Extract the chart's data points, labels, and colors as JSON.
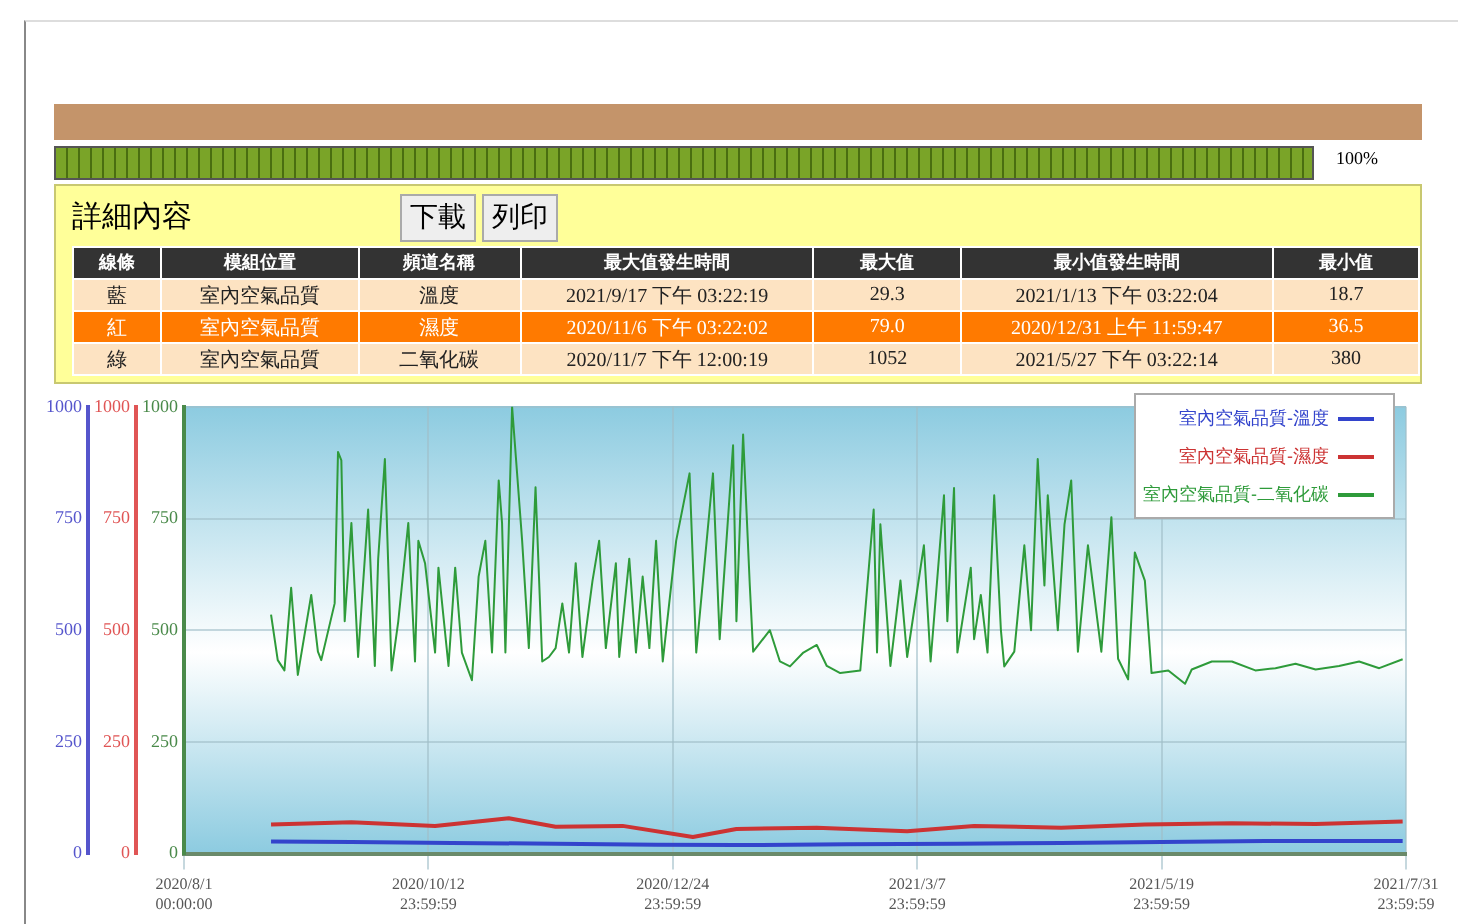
{
  "chart_data": [
    {
      "type": "other",
      "title": "詳細內容",
      "annotations": [
        "100%",
        "下載",
        "列印",
        "線條",
        "模組位置",
        "頻道名稱",
        "最大值發生時間",
        "最大值",
        "最小值發生時間",
        "最小值",
        "藍",
        "室內空氣品質",
        "溫度",
        "2021/9/17 下午 03:22:19",
        "29.3",
        "2021/1/13 下午 03:22:04",
        "18.7",
        "紅",
        "室內空氣品質",
        "濕度",
        "2020/11/6 下午 03:22:02",
        "79.0",
        "2020/12/31 上午 11:59:47",
        "36.5",
        "綠",
        "室內空氣品質",
        "二氧化碳",
        "2020/11/7 下午 12:00:19",
        "1052",
        "2021/5/27 下午 03:22:14",
        "380"
      ]
    },
    {
      "type": "line",
      "legend": "top right",
      "grid": true,
      "marker": "none",
      "line_style": "solid",
      "xlim": [
        "2020-08-01T00:00",
        "2021-07-31T23:59"
      ],
      "xticks": [
        {
          "value": "2020-08-01T00:00",
          "label": "2020/8/1 00:00:00"
        },
        {
          "value": "2020-10-12T23:59",
          "label": "2020/10/12 23:59:59"
        },
        {
          "value": "2020-12-24T23:59",
          "label": "2020/12/24 23:59:59"
        },
        {
          "value": "2021-03-07T23:59",
          "label": "2021/3/7 23:59:59"
        },
        {
          "value": "2021-05-19T23:59",
          "label": "2021/5/19 23:59:59"
        },
        {
          "value": "2021-07-31T23:59",
          "label": "2021/7/31 23:59:59"
        }
      ],
      "ylim": [
        0,
        1000
      ],
      "yticks": [
        0,
        250,
        500,
        750,
        1000
      ],
      "y2lim": [
        0,
        1000
      ],
      "y2ticks": [
        0,
        250,
        500,
        750,
        1000
      ],
      "y3lim": [
        0,
        1000
      ],
      "y3ticks": [
        0,
        250,
        500,
        750,
        1000
      ],
      "series": [
        {
          "name": "室內空氣品質-溫度",
          "color": "#3344cc",
          "axis": "y",
          "x": [
            "2020-08-27",
            "2020-09-20",
            "2020-10-20",
            "2020-11-20",
            "2020-12-20",
            "2021-01-13",
            "2021-02-15",
            "2021-03-20",
            "2021-04-20",
            "2021-05-20",
            "2021-06-20",
            "2021-07-31"
          ],
          "values": [
            27,
            26,
            24,
            22,
            20,
            19,
            21,
            22,
            24,
            26,
            28,
            28
          ]
        },
        {
          "name": "室內空氣品質-濕度",
          "color": "#cc3333",
          "axis": "y2",
          "x": [
            "2020-08-27",
            "2020-09-20",
            "2020-10-15",
            "2020-11-06",
            "2020-11-20",
            "2020-12-10",
            "2020-12-31",
            "2021-01-13",
            "2021-02-06",
            "2021-03-05",
            "2021-03-25",
            "2021-04-20",
            "2021-05-15",
            "2021-06-10",
            "2021-07-05",
            "2021-07-31"
          ],
          "values": [
            65,
            70,
            62,
            79,
            60,
            62,
            37,
            55,
            58,
            50,
            62,
            58,
            65,
            68,
            66,
            72
          ]
        },
        {
          "name": "室內空氣品質-二氧化碳",
          "color": "#2e9b3a",
          "axis": "y3",
          "x": [
            "2020-08-27",
            "2020-08-29",
            "2020-08-31",
            "2020-09-02",
            "2020-09-04",
            "2020-09-08",
            "2020-09-10",
            "2020-09-11",
            "2020-09-15",
            "2020-09-16",
            "2020-09-17",
            "2020-09-18",
            "2020-09-20",
            "2020-09-22",
            "2020-09-25",
            "2020-09-27",
            "2020-09-28",
            "2020-09-30",
            "2020-10-02",
            "2020-10-04",
            "2020-10-07",
            "2020-10-09",
            "2020-10-10",
            "2020-10-12",
            "2020-10-15",
            "2020-10-16",
            "2020-10-19",
            "2020-10-21",
            "2020-10-23",
            "2020-10-26",
            "2020-10-28",
            "2020-10-30",
            "2020-11-01",
            "2020-11-03",
            "2020-11-04",
            "2020-11-05",
            "2020-11-07",
            "2020-11-10",
            "2020-11-12",
            "2020-11-14",
            "2020-11-16",
            "2020-11-18",
            "2020-11-20",
            "2020-11-22",
            "2020-11-24",
            "2020-11-26",
            "2020-11-28",
            "2020-12-01",
            "2020-12-03",
            "2020-12-05",
            "2020-12-08",
            "2020-12-09",
            "2020-12-12",
            "2020-12-14",
            "2020-12-16",
            "2020-12-18",
            "2020-12-20",
            "2020-12-22",
            "2020-12-26",
            "2020-12-30",
            "2021-01-01",
            "2021-01-06",
            "2021-01-08",
            "2021-01-12",
            "2021-01-13",
            "2021-01-15",
            "2021-01-17",
            "2021-01-18",
            "2021-01-23",
            "2021-01-26",
            "2021-01-29",
            "2021-02-02",
            "2021-02-06",
            "2021-02-09",
            "2021-02-13",
            "2021-02-19",
            "2021-02-23",
            "2021-02-24",
            "2021-02-25",
            "2021-02-28",
            "2021-03-03",
            "2021-03-05",
            "2021-03-10",
            "2021-03-12",
            "2021-03-16",
            "2021-03-17",
            "2021-03-19",
            "2021-03-20",
            "2021-03-24",
            "2021-03-25",
            "2021-03-27",
            "2021-03-29",
            "2021-03-31",
            "2021-04-02",
            "2021-04-03",
            "2021-04-06",
            "2021-04-09",
            "2021-04-11",
            "2021-04-13",
            "2021-04-15",
            "2021-04-16",
            "2021-04-19",
            "2021-04-21",
            "2021-04-23",
            "2021-04-25",
            "2021-04-28",
            "2021-05-02",
            "2021-05-05",
            "2021-05-07",
            "2021-05-10",
            "2021-05-12",
            "2021-05-15",
            "2021-05-17",
            "2021-05-22",
            "2021-05-27",
            "2021-05-29",
            "2021-06-04",
            "2021-06-10",
            "2021-06-17",
            "2021-06-23",
            "2021-06-29",
            "2021-07-05",
            "2021-07-12",
            "2021-07-18",
            "2021-07-24",
            "2021-07-31"
          ],
          "values": [
            535,
            433,
            410,
            595,
            400,
            579,
            452,
            433,
            560,
            899,
            880,
            520,
            740,
            440,
            770,
            420,
            660,
            883,
            410,
            520,
            740,
            430,
            700,
            650,
            450,
            640,
            420,
            640,
            450,
            388,
            620,
            700,
            450,
            835,
            740,
            450,
            1000,
            700,
            460,
            820,
            430,
            440,
            460,
            560,
            450,
            650,
            440,
            610,
            700,
            460,
            650,
            440,
            660,
            450,
            620,
            460,
            700,
            430,
            700,
            851,
            450,
            851,
            480,
            914,
            520,
            938,
            600,
            452,
            500,
            430,
            419,
            450,
            467,
            420,
            404,
            410,
            770,
            450,
            737,
            420,
            611,
            440,
            690,
            430,
            802,
            520,
            818,
            450,
            640,
            480,
            579,
            450,
            802,
            500,
            419,
            452,
            690,
            500,
            883,
            600,
            802,
            500,
            737,
            835,
            452,
            690,
            452,
            753,
            436,
            390,
            674,
            611,
            404,
            410,
            380,
            412,
            430,
            430,
            410,
            415,
            425,
            412,
            420,
            430,
            415,
            435
          ]
        }
      ]
    }
  ]
}
